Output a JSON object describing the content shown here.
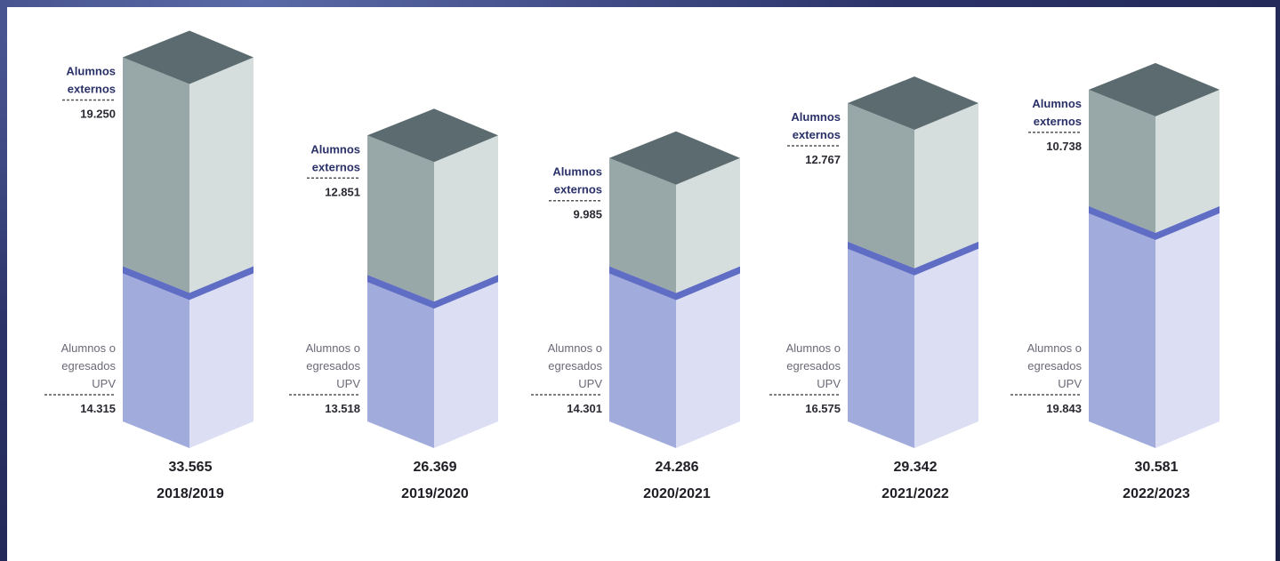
{
  "chart_data": {
    "type": "bar",
    "stacked": true,
    "categories": [
      "2018/2019",
      "2019/2020",
      "2020/2021",
      "2021/2022",
      "2022/2023"
    ],
    "series": [
      {
        "name": "Alumnos o egresados UPV",
        "values": [
          14.315,
          13.518,
          14.301,
          16.575,
          19.843
        ],
        "labels": [
          "14.315",
          "13.518",
          "14.301",
          "16.575",
          "19.843"
        ],
        "color": "#a2acdc"
      },
      {
        "name": "Alumnos externos",
        "values": [
          19.25,
          12.851,
          9.985,
          12.767,
          10.738
        ],
        "labels": [
          "19.250",
          "12.851",
          "9.985",
          "12.767",
          "10.738"
        ],
        "color": "#98a7a8"
      }
    ],
    "totals": [
      "33.565",
      "26.369",
      "24.286",
      "29.342",
      "30.581"
    ],
    "series_label_lines": {
      "upv": [
        "Alumnos o",
        "egresados",
        "UPV"
      ],
      "ext": [
        "Alumnos",
        "externos"
      ]
    },
    "colors": {
      "upv_front": "#a2acdc",
      "upv_side": "#dcdff3",
      "divider": "#5f6dc4",
      "ext_front": "#98a7a8",
      "ext_side": "#d5dedd",
      "ext_top": "#5c6b70"
    },
    "grid": false,
    "legend": "none"
  }
}
